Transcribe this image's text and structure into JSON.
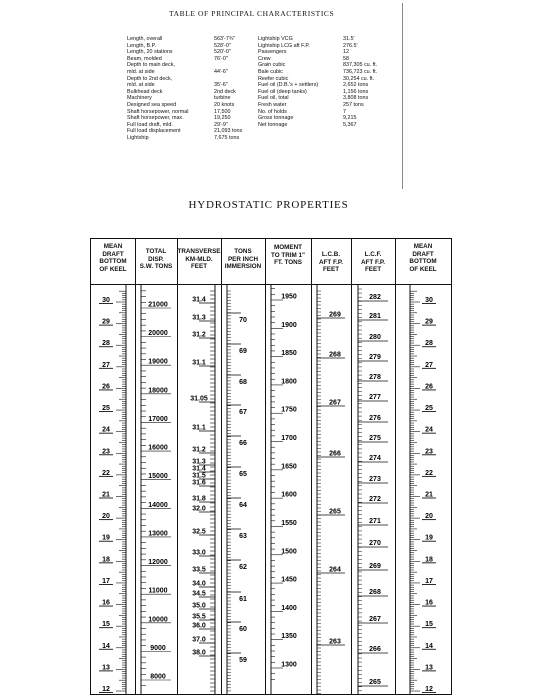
{
  "principal": {
    "title": "TABLE OF PRINCIPAL CHARACTERISTICS",
    "col1": [
      "Length, overall",
      "Length, B.P.",
      "Length, 20 stations",
      "Beam, molded",
      "Depth to main deck,",
      "mld. at side",
      "Depth to 2nd deck,",
      "mld. at side",
      "Bulkhead deck",
      "Machinery",
      "Designed sea speed",
      "Shaft horsepower, normal",
      "Shaft horsepower, max.",
      "Full load draft, mld.",
      "Full load displacement",
      "Lightship"
    ],
    "col2": [
      "563'-7¾\"",
      "528'-0\"",
      "520'-0\"",
      "76'-0\"",
      "",
      "44'-6\"",
      "",
      "35'-6\"",
      "2nd deck",
      "turbine",
      "20 knots",
      "17,500",
      "19,250",
      "29'-9\"",
      "21,093 tons",
      "7,675 tons"
    ],
    "col3": [
      "Lightship VCG",
      "Lightship LCG aft F.P.",
      "Passengers",
      "Crew",
      "Grain cubic",
      "Bale cubic",
      "Reefer cubic",
      "Fuel oil (D.B.'s + settlers)",
      "Fuel oil (deep tanks)",
      "Fuel oil, total",
      "Fresh water",
      "No. of holds",
      "Gross tonnage",
      "Net tonnage"
    ],
    "col4": [
      "31.5'",
      "276.5'",
      "12",
      "58",
      "837,305 cu. ft.",
      "736,723 cu. ft.",
      "30,254 cu. ft.",
      "2,652 tons",
      "1,156 tons",
      "3,808 tons",
      "257 tons",
      "7",
      "9,215",
      "5,367"
    ]
  },
  "hydrostatic": {
    "title": "HYDROSTATIC PROPERTIES",
    "headers": {
      "draft_left": [
        "MEAN",
        "DRAFT",
        "BOTTOM",
        "OF KEEL"
      ],
      "disp": [
        "TOTAL",
        "DISP.",
        "S.W. TONS"
      ],
      "km": [
        "TRANSVERSE",
        "KM-MLD.",
        "FEET"
      ],
      "tpi": [
        "TONS",
        "PER INCH",
        "IMMERSION"
      ],
      "mt": [
        "MOMENT",
        "TO TRIM 1\"",
        "FT. TONS"
      ],
      "lcb": [
        "L.C.B.",
        "AFT F.P.",
        "FEET"
      ],
      "lcf": [
        "L.C.F.",
        "AFT F.P.",
        "FEET"
      ],
      "draft_right": [
        "MEAN",
        "DRAFT",
        "BOTTOM",
        "OF KEEL"
      ]
    },
    "draft_labels": [
      "30",
      "29",
      "28",
      "27",
      "26",
      "25",
      "24",
      "23",
      "22",
      "21",
      "20",
      "19",
      "18",
      "17",
      "16",
      "15",
      "14",
      "13",
      "12"
    ],
    "disp_labels": [
      "21000",
      "20000",
      "19000",
      "18000",
      "17000",
      "16000",
      "15000",
      "14000",
      "13000",
      "12000",
      "11000",
      "10000",
      "9000",
      "8000"
    ],
    "km_labels": [
      "31.4",
      "31.3",
      "31.2",
      "31.1",
      "31.05",
      "31.1",
      "31.2",
      "31.3",
      "31.4",
      "31.5",
      "31.6",
      "31.8",
      "32.0",
      "32.5",
      "33.0",
      "33.5",
      "34.0",
      "34.5",
      "35.0",
      "35.5",
      "36.0",
      "37.0",
      "38.0"
    ],
    "tpi_labels": [
      "70",
      "69",
      "68",
      "67",
      "66",
      "65",
      "64",
      "63",
      "62",
      "61",
      "60",
      "59"
    ],
    "mt_labels": [
      "1950",
      "1900",
      "1850",
      "1800",
      "1750",
      "1700",
      "1650",
      "1600",
      "1550",
      "1500",
      "1450",
      "1400",
      "1350",
      "1300"
    ],
    "lcb_labels": [
      "269",
      "268",
      "267",
      "266",
      "265",
      "264",
      "263"
    ],
    "lcf_labels": [
      "282",
      "281",
      "280",
      "279",
      "278",
      "277",
      "276",
      "275",
      "274",
      "273",
      "272",
      "271",
      "270",
      "269",
      "268",
      "267",
      "266",
      "265"
    ]
  }
}
